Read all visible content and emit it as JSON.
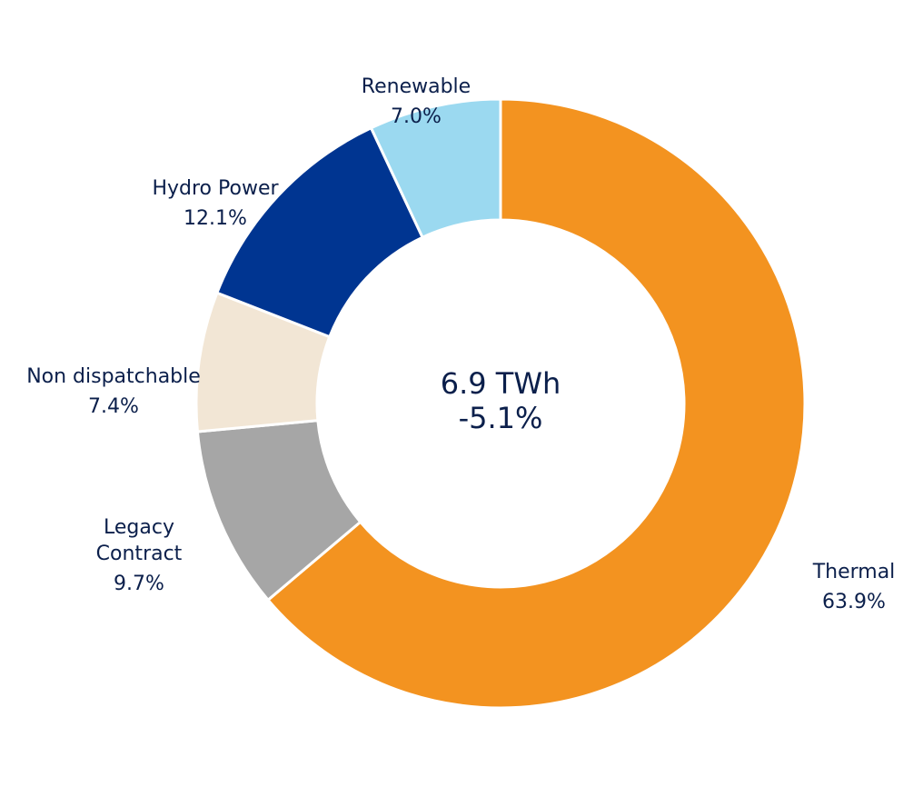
{
  "chart_data": {
    "type": "pie",
    "variant": "donut",
    "center": {
      "total": "6.9 TWh",
      "change": "-5.1%"
    },
    "slices": [
      {
        "label": "Thermal",
        "value": 63.9,
        "value_label": "63.9%",
        "color": "#f39320"
      },
      {
        "label": "Legacy\nContract",
        "value": 9.7,
        "value_label": "9.7%",
        "color": "#a6a6a6"
      },
      {
        "label": "Non dispatchable",
        "value": 7.4,
        "value_label": "7.4%",
        "color": "#f2e6d5"
      },
      {
        "label": "Hydro Power",
        "value": 12.1,
        "value_label": "12.1%",
        "color": "#003591"
      },
      {
        "label": "Renewable",
        "value": 7.0,
        "value_label": "7.0%",
        "color": "#9bd9f0"
      }
    ],
    "start": "12 o'clock",
    "direction": "clockwise"
  }
}
